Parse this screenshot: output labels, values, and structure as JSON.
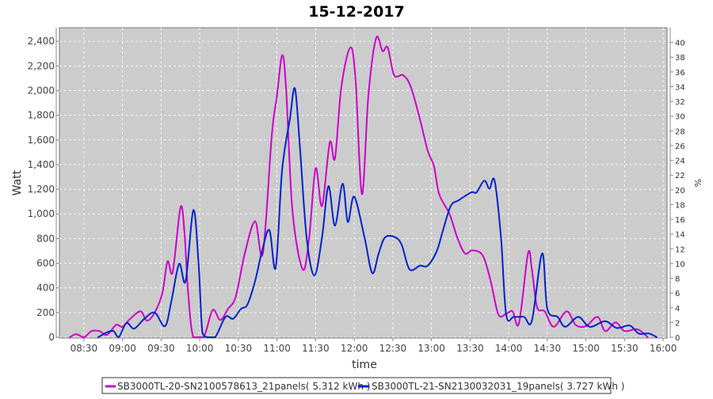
{
  "chart_data": {
    "type": "line",
    "title": "15-12-2017",
    "xlabel": "time",
    "ylabel": "Watt",
    "y2label": "%",
    "xlim": [
      "08:11",
      "16:03"
    ],
    "ylim": [
      0,
      2510
    ],
    "y2lim": [
      0,
      42
    ],
    "grid": true,
    "legend_position": "bottom",
    "x_ticks": [
      "08:30",
      "09:00",
      "09:30",
      "10:00",
      "10:30",
      "11:00",
      "11:30",
      "12:00",
      "12:30",
      "13:00",
      "13:30",
      "14:00",
      "14:30",
      "15:00",
      "15:30",
      "16:00"
    ],
    "y_ticks": [
      "0",
      "200",
      "400",
      "600",
      "800",
      "1,000",
      "1,200",
      "1,400",
      "1,600",
      "1,800",
      "2,000",
      "2,200",
      "2,400"
    ],
    "y2_ticks": [
      "0",
      "2",
      "4",
      "6",
      "8",
      "10",
      "12",
      "14",
      "16",
      "18",
      "20",
      "22",
      "24",
      "26",
      "28",
      "30",
      "32",
      "34",
      "36",
      "38",
      "40"
    ],
    "series": [
      {
        "name": "SB3000TL-20-SN2100578613_21panels( 5.312 kWh )",
        "color": "#cc00cc",
        "x": [
          "08:19",
          "08:24",
          "08:30",
          "08:36",
          "08:42",
          "08:48",
          "08:55",
          "09:00",
          "09:06",
          "09:14",
          "09:19",
          "09:25",
          "09:31",
          "09:35",
          "09:39",
          "09:45",
          "09:48",
          "09:51",
          "09:55",
          "10:03",
          "10:10",
          "10:16",
          "10:22",
          "10:28",
          "10:35",
          "10:43",
          "10:49",
          "10:56",
          "11:00",
          "11:04",
          "11:07",
          "11:12",
          "11:20",
          "11:25",
          "11:30",
          "11:35",
          "11:41",
          "11:45",
          "11:50",
          "11:57",
          "12:01",
          "12:06",
          "12:11",
          "12:17",
          "12:22",
          "12:26",
          "12:31",
          "12:38",
          "12:44",
          "12:51",
          "12:57",
          "13:02",
          "13:06",
          "13:14",
          "13:20",
          "13:26",
          "13:32",
          "13:40",
          "13:46",
          "13:52",
          "13:58",
          "14:03",
          "14:08",
          "14:15",
          "14:18",
          "14:22",
          "14:28",
          "14:35",
          "14:45",
          "14:52",
          "15:00",
          "15:09",
          "15:15",
          "15:23",
          "15:30",
          "15:40",
          "15:48"
        ],
        "y": [
          0,
          25,
          0,
          50,
          50,
          20,
          100,
          85,
          150,
          210,
          135,
          200,
          360,
          615,
          530,
          1050,
          870,
          360,
          0,
          0,
          220,
          140,
          230,
          330,
          680,
          940,
          680,
          1640,
          1960,
          2285,
          2030,
          1030,
          550,
          810,
          1370,
          1065,
          1580,
          1450,
          2030,
          2350,
          2090,
          1160,
          1960,
          2425,
          2320,
          2350,
          2125,
          2125,
          2030,
          1770,
          1515,
          1385,
          1160,
          1000,
          810,
          680,
          705,
          660,
          455,
          185,
          190,
          210,
          115,
          680,
          550,
          245,
          210,
          85,
          210,
          100,
          90,
          165,
          50,
          120,
          50,
          65,
          0
        ]
      },
      {
        "name": "SB3000TL-21-SN2130032031_19panels( 3.727 kWh )",
        "color": "#0022cc",
        "x": [
          "08:41",
          "08:48",
          "08:53",
          "08:57",
          "09:03",
          "09:09",
          "09:17",
          "09:25",
          "09:33",
          "09:38",
          "09:44",
          "09:49",
          "09:55",
          "09:59",
          "10:02",
          "10:06",
          "10:12",
          "10:20",
          "10:26",
          "10:32",
          "10:37",
          "10:43",
          "10:48",
          "10:54",
          "10:59",
          "11:04",
          "11:10",
          "11:14",
          "11:18",
          "11:23",
          "11:29",
          "11:35",
          "11:40",
          "11:45",
          "11:51",
          "11:55",
          "12:00",
          "12:08",
          "12:14",
          "12:19",
          "12:24",
          "12:32",
          "12:37",
          "12:43",
          "12:51",
          "12:57",
          "13:04",
          "13:09",
          "13:15",
          "13:21",
          "13:31",
          "13:35",
          "13:41",
          "13:45",
          "13:49",
          "13:54",
          "13:58",
          "14:04",
          "14:12",
          "14:18",
          "14:26",
          "14:30",
          "14:38",
          "14:44",
          "14:54",
          "15:03",
          "15:15",
          "15:24",
          "15:34",
          "15:41",
          "15:49",
          "15:55"
        ],
        "y": [
          0,
          40,
          50,
          0,
          115,
          70,
          150,
          200,
          90,
          295,
          595,
          455,
          1030,
          615,
          40,
          0,
          0,
          165,
          150,
          230,
          265,
          455,
          680,
          870,
          565,
          1355,
          1770,
          2015,
          1515,
          810,
          500,
          810,
          1225,
          905,
          1245,
          935,
          1140,
          810,
          520,
          680,
          810,
          810,
          745,
          550,
          580,
          580,
          695,
          870,
          1065,
          1110,
          1175,
          1175,
          1270,
          1205,
          1270,
          810,
          185,
          165,
          165,
          135,
          680,
          230,
          165,
          85,
          165,
          85,
          130,
          75,
          95,
          30,
          30,
          0
        ]
      }
    ]
  }
}
